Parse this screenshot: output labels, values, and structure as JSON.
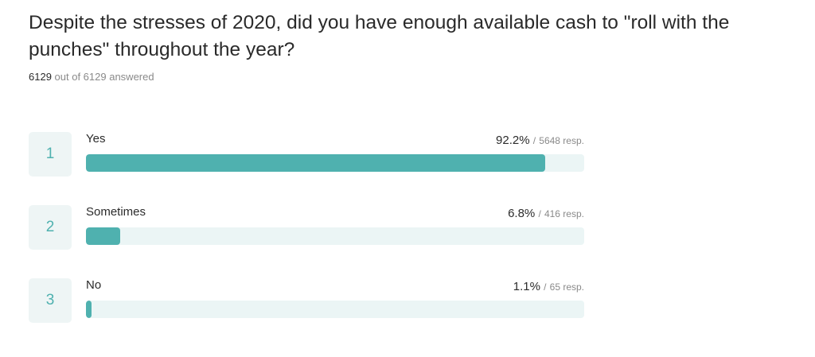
{
  "question": "Despite the stresses of 2020, did you have enough available cash to \"roll with the punches\" throughout the year?",
  "answered": {
    "count": "6129",
    "suffix": "out of 6129 answered"
  },
  "colors": {
    "accent": "#4fb1af",
    "track": "#ebf5f5",
    "number_bg": "#eef5f5"
  },
  "chart_data": {
    "type": "bar",
    "orientation": "horizontal",
    "categories": [
      "Yes",
      "Sometimes",
      "No"
    ],
    "values": [
      92.2,
      6.8,
      1.1
    ],
    "responses": [
      5648,
      416,
      65
    ],
    "xlim": [
      0,
      100
    ],
    "unit": "%"
  },
  "options": [
    {
      "number": "1",
      "label": "Yes",
      "percent": "92.2%",
      "sep": "/",
      "resp": "5648 resp.",
      "value": 92.2
    },
    {
      "number": "2",
      "label": "Sometimes",
      "percent": "6.8%",
      "sep": "/",
      "resp": "416 resp.",
      "value": 6.8
    },
    {
      "number": "3",
      "label": "No",
      "percent": "1.1%",
      "sep": "/",
      "resp": "65 resp.",
      "value": 1.1
    }
  ]
}
